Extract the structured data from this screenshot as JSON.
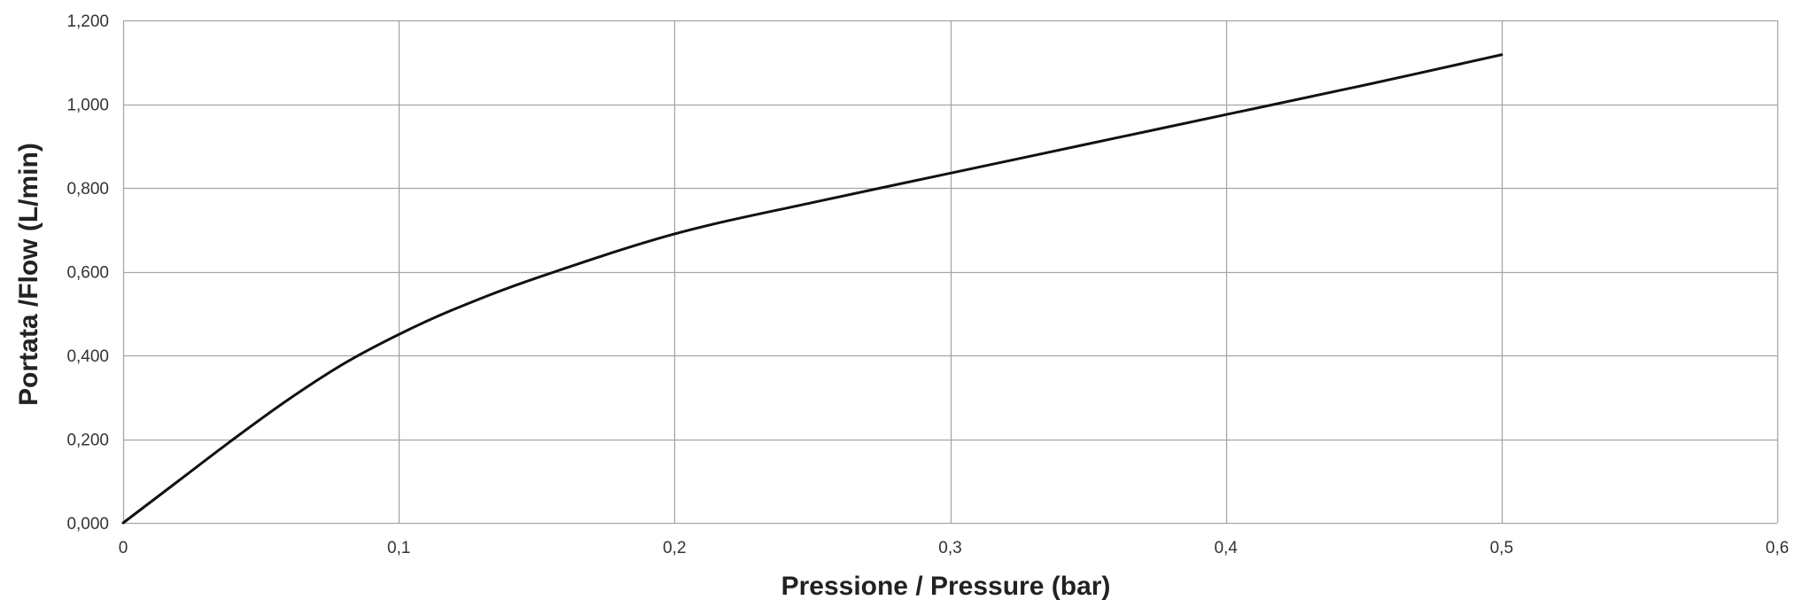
{
  "chart_data": {
    "type": "line",
    "title": "",
    "xlabel": "Pressione / Pressure (bar)",
    "ylabel": "Portata /Flow (L/min)",
    "xlim": [
      0,
      0.6
    ],
    "ylim": [
      0,
      1.2
    ],
    "x_ticks": [
      0,
      0.1,
      0.2,
      0.3,
      0.4,
      0.5,
      0.6
    ],
    "x_tick_labels": [
      "0",
      "0,1",
      "0,2",
      "0,3",
      "0,4",
      "0,5",
      "0,6"
    ],
    "y_ticks": [
      0,
      0.2,
      0.4,
      0.6,
      0.8,
      1.0,
      1.2
    ],
    "y_tick_labels": [
      "0,000",
      "0,200",
      "0,400",
      "0,600",
      "0,800",
      "1,000",
      "1,200"
    ],
    "grid": true,
    "legend": "none",
    "series": [
      {
        "color": "#111111",
        "x": [
          0,
          0.02,
          0.04,
          0.06,
          0.08,
          0.1,
          0.12,
          0.15,
          0.2,
          0.25,
          0.3,
          0.35,
          0.4,
          0.45,
          0.5
        ],
        "y": [
          0,
          0.1,
          0.2,
          0.295,
          0.38,
          0.45,
          0.51,
          0.585,
          0.69,
          0.765,
          0.835,
          0.905,
          0.975,
          1.045,
          1.118
        ]
      }
    ]
  }
}
